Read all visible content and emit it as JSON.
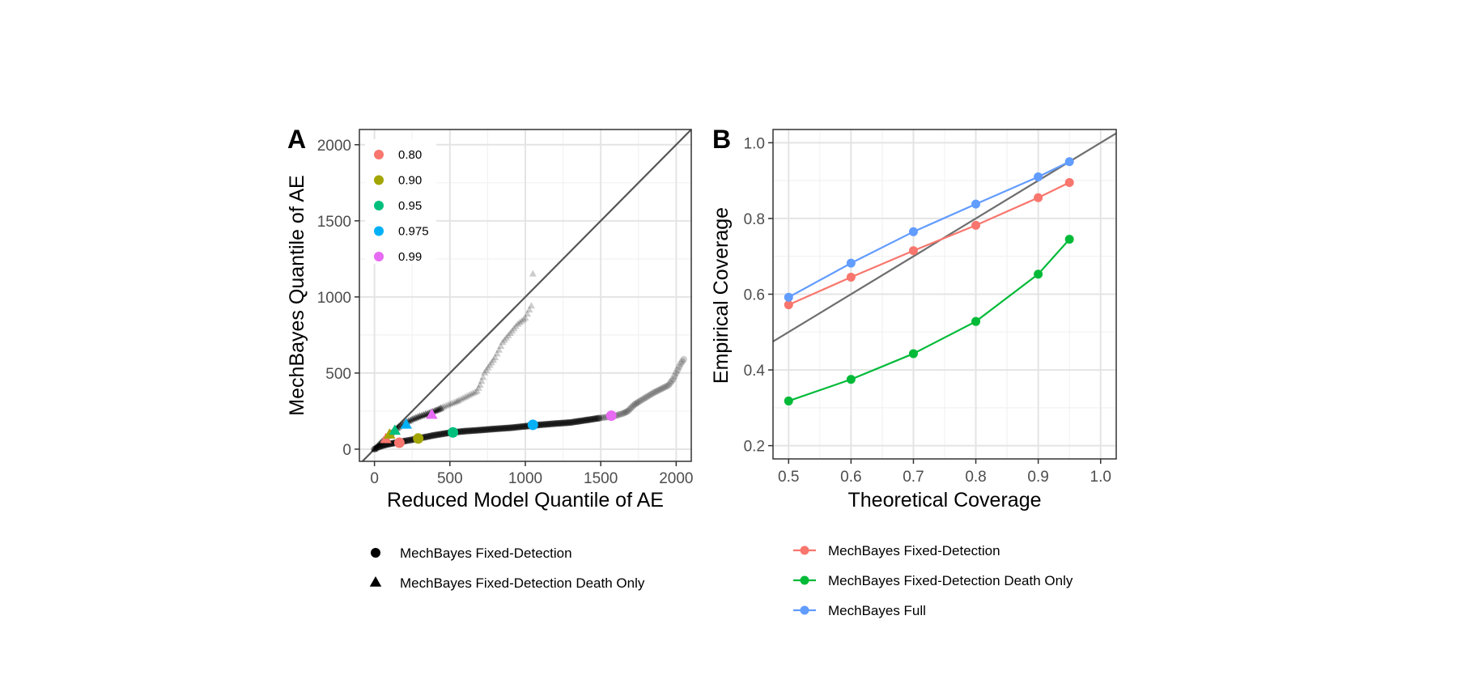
{
  "chart_data": [
    {
      "panel": "A",
      "type": "scatter",
      "xlabel": "Reduced Model Quantile of AE",
      "ylabel": "MechBayes Quantile of AE",
      "xlim": [
        -100,
        2100
      ],
      "ylim": [
        -80,
        2100
      ],
      "xticks": [
        0,
        500,
        1000,
        1500,
        2000
      ],
      "yticks": [
        0,
        500,
        1000,
        1500,
        2000
      ],
      "grid": true,
      "reference_line": "y = x",
      "highlight_legend_position": "top-left inside",
      "shape_legend_position": "bottom",
      "highlight_quantiles": [
        {
          "label": "0.80",
          "color": "#F8766D"
        },
        {
          "label": "0.90",
          "color": "#A3A500"
        },
        {
          "label": "0.95",
          "color": "#00BF7D"
        },
        {
          "label": "0.975",
          "color": "#00B0F6"
        },
        {
          "label": "0.99",
          "color": "#E76BF3"
        }
      ],
      "shape_legend": [
        {
          "label": "MechBayes Fixed-Detection",
          "shape": "circle"
        },
        {
          "label": "MechBayes Fixed-Detection Death Only",
          "shape": "triangle"
        }
      ],
      "series": [
        {
          "shape": "circle",
          "x": [
            0,
            15,
            30,
            50,
            80,
            110,
            140,
            170,
            200,
            250,
            300,
            350,
            400,
            450,
            500,
            600,
            700,
            800,
            900,
            1000,
            1100,
            1200,
            1300,
            1400,
            1500,
            1550,
            1600,
            1650,
            1680,
            1700,
            1720,
            1750,
            1800,
            1850,
            1900,
            1950,
            1980,
            2000,
            2030,
            2050
          ],
          "y": [
            0,
            8,
            15,
            22,
            30,
            36,
            42,
            47,
            53,
            62,
            72,
            82,
            92,
            100,
            108,
            118,
            125,
            133,
            140,
            150,
            160,
            168,
            175,
            190,
            205,
            212,
            220,
            235,
            250,
            270,
            290,
            310,
            340,
            370,
            395,
            420,
            460,
            500,
            560,
            590
          ],
          "highlights": [
            {
              "x": 165,
              "y": 42,
              "quantile": "0.80"
            },
            {
              "x": 290,
              "y": 70,
              "quantile": "0.90"
            },
            {
              "x": 520,
              "y": 110,
              "quantile": "0.95"
            },
            {
              "x": 1050,
              "y": 160,
              "quantile": "0.975"
            },
            {
              "x": 1570,
              "y": 220,
              "quantile": "0.99"
            }
          ]
        },
        {
          "shape": "triangle",
          "x": [
            0,
            20,
            40,
            60,
            80,
            100,
            130,
            160,
            200,
            250,
            300,
            350,
            400,
            430,
            460,
            500,
            540,
            560,
            600,
            640,
            680,
            700,
            720,
            730,
            800,
            850,
            900,
            950,
            1000,
            1040,
            1050
          ],
          "y": [
            0,
            20,
            40,
            58,
            75,
            95,
            120,
            145,
            170,
            195,
            215,
            232,
            250,
            262,
            278,
            295,
            310,
            320,
            340,
            360,
            380,
            420,
            470,
            500,
            600,
            700,
            760,
            820,
            860,
            940,
            1150
          ],
          "highlights": [
            {
              "x": 75,
              "y": 65,
              "quantile": "0.80"
            },
            {
              "x": 100,
              "y": 95,
              "quantile": "0.90"
            },
            {
              "x": 135,
              "y": 120,
              "quantile": "0.95"
            },
            {
              "x": 210,
              "y": 160,
              "quantile": "0.975"
            },
            {
              "x": 380,
              "y": 225,
              "quantile": "0.99"
            }
          ]
        }
      ]
    },
    {
      "panel": "B",
      "type": "line",
      "xlabel": "Theoretical Coverage",
      "ylabel": "Empirical Coverage",
      "xlim": [
        0.475,
        1.025
      ],
      "ylim": [
        0.165,
        1.035
      ],
      "xticks": [
        "0.5",
        "0.6",
        "0.7",
        "0.8",
        "0.9",
        "1.0"
      ],
      "yticks": [
        "0.2",
        "0.4",
        "0.6",
        "0.8",
        "1.0"
      ],
      "grid": true,
      "reference_line": "y = x",
      "legend_position": "bottom",
      "x": [
        0.5,
        0.6,
        0.7,
        0.8,
        0.9,
        0.95
      ],
      "series": [
        {
          "name": "MechBayes Fixed-Detection",
          "color": "#F8766D",
          "values": [
            0.572,
            0.645,
            0.715,
            0.782,
            0.855,
            0.895
          ]
        },
        {
          "name": "MechBayes Fixed-Detection Death Only",
          "color": "#00BA38",
          "values": [
            0.318,
            0.375,
            0.443,
            0.528,
            0.653,
            0.745
          ]
        },
        {
          "name": "MechBayes Full",
          "color": "#619CFF",
          "values": [
            0.592,
            0.682,
            0.765,
            0.838,
            0.91,
            0.95
          ]
        }
      ]
    }
  ]
}
